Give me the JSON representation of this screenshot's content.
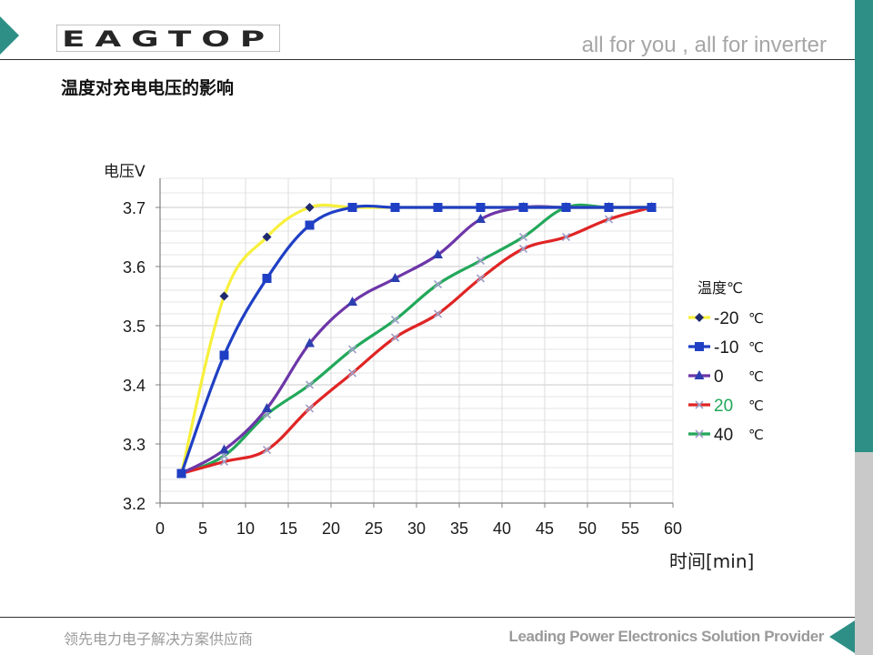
{
  "header": {
    "logo_text": "EAGTOP",
    "slogan": "all for you , all for inverter",
    "slide_title": "温度对充电电压的影响"
  },
  "footer": {
    "left_text": "领先电力电子解决方案供应商",
    "right_text": "Leading Power Electronics Solution Provider"
  },
  "theme": {
    "accent": "#2e8f86",
    "side_gray": "#c9c9c9"
  },
  "chart_data": {
    "type": "line",
    "title": "",
    "ylabel": "电压V",
    "xlabel": "时间[min]",
    "xlim": [
      0,
      60
    ],
    "ylim": [
      3.2,
      3.7
    ],
    "xticks": [
      "0",
      "5",
      "10",
      "15",
      "20",
      "25",
      "30",
      "35",
      "40",
      "45",
      "50",
      "55",
      "60"
    ],
    "yticks": [
      "3.2",
      "3.3",
      "3.4",
      "3.5",
      "3.6",
      "3.7"
    ],
    "grid": true,
    "legend_title": "温度℃",
    "legend_position": "right",
    "x": [
      2.5,
      7.5,
      12.5,
      17.5,
      22.5,
      27.5,
      32.5,
      37.5,
      42.5,
      47.5,
      52.5,
      57.5
    ],
    "series": [
      {
        "name": "-20",
        "unit": "℃",
        "color": "#f7f03c",
        "marker": "diamond",
        "marker_color": "#1f2a6e",
        "values": [
          3.25,
          3.55,
          3.65,
          3.7,
          3.7,
          3.7,
          3.7,
          3.7,
          3.7,
          3.7,
          3.7,
          3.7
        ],
        "marker_indices": [
          0,
          1,
          2,
          3
        ]
      },
      {
        "name": "-10",
        "unit": "℃",
        "color": "#1f3fc4",
        "marker": "square",
        "marker_color": "#1f3fc4",
        "values": [
          3.25,
          3.45,
          3.58,
          3.67,
          3.7,
          3.7,
          3.7,
          3.7,
          3.7,
          3.7,
          3.7,
          3.7
        ],
        "marker_indices": [
          0,
          1,
          2,
          3,
          4,
          5,
          6,
          7,
          8,
          9,
          10,
          11
        ]
      },
      {
        "name": "0",
        "unit": "℃",
        "color": "#6d36a8",
        "marker": "triangle",
        "marker_color": "#2c3fb0",
        "values": [
          3.25,
          3.29,
          3.36,
          3.47,
          3.54,
          3.58,
          3.62,
          3.68,
          3.7,
          3.7,
          3.7,
          3.7
        ],
        "marker_indices": [
          0,
          1,
          2,
          3,
          4,
          5,
          6,
          7,
          8,
          9,
          10,
          11
        ]
      },
      {
        "name": "20",
        "unit": "℃",
        "color": "#e02424",
        "marker": "x",
        "marker_color": "#a0a0c8",
        "values": [
          3.25,
          3.27,
          3.29,
          3.36,
          3.42,
          3.48,
          3.52,
          3.58,
          3.63,
          3.65,
          3.68,
          3.7
        ],
        "marker_indices": [
          0,
          1,
          2,
          3,
          4,
          5,
          6,
          7,
          8,
          9,
          10,
          11
        ]
      },
      {
        "name": "40",
        "unit": "℃",
        "color": "#22a85a",
        "marker": "x",
        "marker_color": "#a0a0c8",
        "values": [
          3.25,
          3.28,
          3.35,
          3.4,
          3.46,
          3.51,
          3.57,
          3.61,
          3.65,
          3.7,
          3.7,
          3.7
        ],
        "marker_indices": [
          0,
          1,
          2,
          3,
          4,
          5,
          6,
          7,
          8,
          9,
          10,
          11
        ]
      }
    ]
  }
}
